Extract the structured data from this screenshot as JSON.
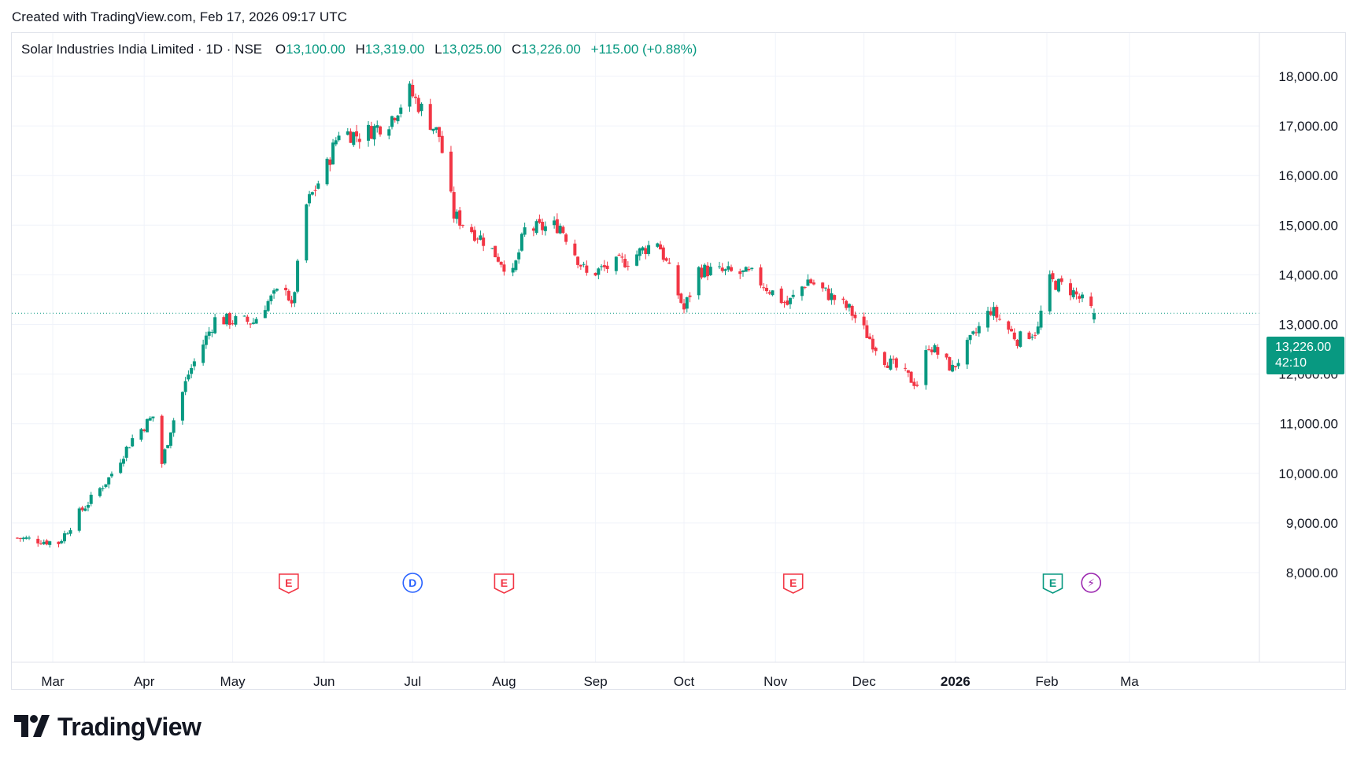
{
  "caption": "Created with TradingView.com, Feb 17, 2026 09:17 UTC",
  "legend": {
    "title": "Solar Industries India Limited · 1D · NSE",
    "open_key": "O",
    "open": "13,100.00",
    "high_key": "H",
    "high": "13,319.00",
    "low_key": "L",
    "low": "13,025.00",
    "close_key": "C",
    "close": "13,226.00",
    "change": "+115.00 (+0.88%)"
  },
  "last_price": {
    "price": "13,226.00",
    "countdown": "42:10"
  },
  "brand": "TradingView",
  "colors": {
    "up": "#089981",
    "down": "#f23645",
    "grid": "#f0f3fa",
    "price_line": "#089981",
    "dividend": "#2962ff",
    "split": "#9c27b0"
  },
  "chart_data": {
    "type": "candlestick",
    "title": "Solar Industries India Limited · 1D · NSE",
    "ylim": [
      7600,
      18900
    ],
    "y_ticks": [
      8000,
      9000,
      10000,
      11000,
      12000,
      13000,
      14000,
      15000,
      16000,
      17000,
      18000
    ],
    "y_tick_labels": [
      "8,000.00",
      "9,000.00",
      "10,000.00",
      "11,000.00",
      "12,000.00",
      "13,000.00",
      "14,000.00",
      "15,000.00",
      "16,000.00",
      "17,000.00",
      "18,000.00"
    ],
    "x_labels": [
      {
        "label": "Mar",
        "date": "2025-03-01",
        "bold": false
      },
      {
        "label": "Apr",
        "date": "2025-04-01",
        "bold": false
      },
      {
        "label": "May",
        "date": "2025-05-01",
        "bold": false
      },
      {
        "label": "Jun",
        "date": "2025-06-01",
        "bold": false
      },
      {
        "label": "Jul",
        "date": "2025-07-01",
        "bold": false
      },
      {
        "label": "Aug",
        "date": "2025-08-01",
        "bold": false
      },
      {
        "label": "Sep",
        "date": "2025-09-01",
        "bold": false
      },
      {
        "label": "Oct",
        "date": "2025-10-01",
        "bold": false
      },
      {
        "label": "Nov",
        "date": "2025-11-01",
        "bold": false
      },
      {
        "label": "Dec",
        "date": "2025-12-01",
        "bold": false
      },
      {
        "label": "2026",
        "date": "2026-01-01",
        "bold": true
      },
      {
        "label": "Feb",
        "date": "2026-02-01",
        "bold": false
      },
      {
        "label": "Ma",
        "date": "2026-03-01",
        "bold": false
      }
    ],
    "anchors": [
      [
        "2025-02-17",
        8700
      ],
      [
        "2025-03-03",
        8600
      ],
      [
        "2025-03-10",
        9200
      ],
      [
        "2025-03-20",
        9900
      ],
      [
        "2025-03-28",
        10700
      ],
      [
        "2025-04-04",
        11150
      ],
      [
        "2025-04-07",
        10200
      ],
      [
        "2025-04-10",
        10900
      ],
      [
        "2025-04-16",
        12000
      ],
      [
        "2025-04-25",
        13100
      ],
      [
        "2025-05-08",
        13050
      ],
      [
        "2025-05-12",
        13400
      ],
      [
        "2025-05-19",
        13800
      ],
      [
        "2025-05-21",
        13300
      ],
      [
        "2025-05-26",
        15400
      ],
      [
        "2025-06-02",
        16200
      ],
      [
        "2025-06-06",
        16900
      ],
      [
        "2025-06-13",
        16800
      ],
      [
        "2025-06-23",
        17100
      ],
      [
        "2025-06-30",
        17700
      ],
      [
        "2025-07-10",
        16800
      ],
      [
        "2025-07-15",
        15200
      ],
      [
        "2025-07-25",
        14700
      ],
      [
        "2025-08-04",
        14000
      ],
      [
        "2025-08-08",
        14900
      ],
      [
        "2025-08-20",
        15000
      ],
      [
        "2025-08-29",
        14000
      ],
      [
        "2025-09-12",
        14300
      ],
      [
        "2025-09-22",
        14700
      ],
      [
        "2025-10-01",
        13300
      ],
      [
        "2025-10-06",
        14100
      ],
      [
        "2025-10-24",
        14000
      ],
      [
        "2025-11-05",
        13400
      ],
      [
        "2025-11-12",
        13900
      ],
      [
        "2025-11-26",
        13300
      ],
      [
        "2025-12-08",
        12300
      ],
      [
        "2025-12-19",
        11800
      ],
      [
        "2025-12-23",
        12600
      ],
      [
        "2025-12-31",
        12100
      ],
      [
        "2026-01-13",
        13300
      ],
      [
        "2026-01-22",
        12700
      ],
      [
        "2026-01-29",
        12900
      ],
      [
        "2026-02-01",
        13900
      ],
      [
        "2026-02-09",
        13700
      ],
      [
        "2026-02-17",
        13226
      ]
    ],
    "last": {
      "date": "2026-02-17",
      "open": 13100,
      "high": 13319,
      "low": 13025,
      "close": 13226
    },
    "events": [
      {
        "type": "earnings",
        "label": "E",
        "date": "2025-05-20"
      },
      {
        "type": "dividend",
        "label": "D",
        "date": "2025-07-01"
      },
      {
        "type": "earnings",
        "label": "E",
        "date": "2025-08-01"
      },
      {
        "type": "earnings",
        "label": "E",
        "date": "2025-11-07"
      },
      {
        "type": "earnings",
        "label": "E",
        "date": "2026-02-03"
      },
      {
        "type": "split",
        "label": "⚡",
        "date": "2026-02-16"
      }
    ]
  }
}
